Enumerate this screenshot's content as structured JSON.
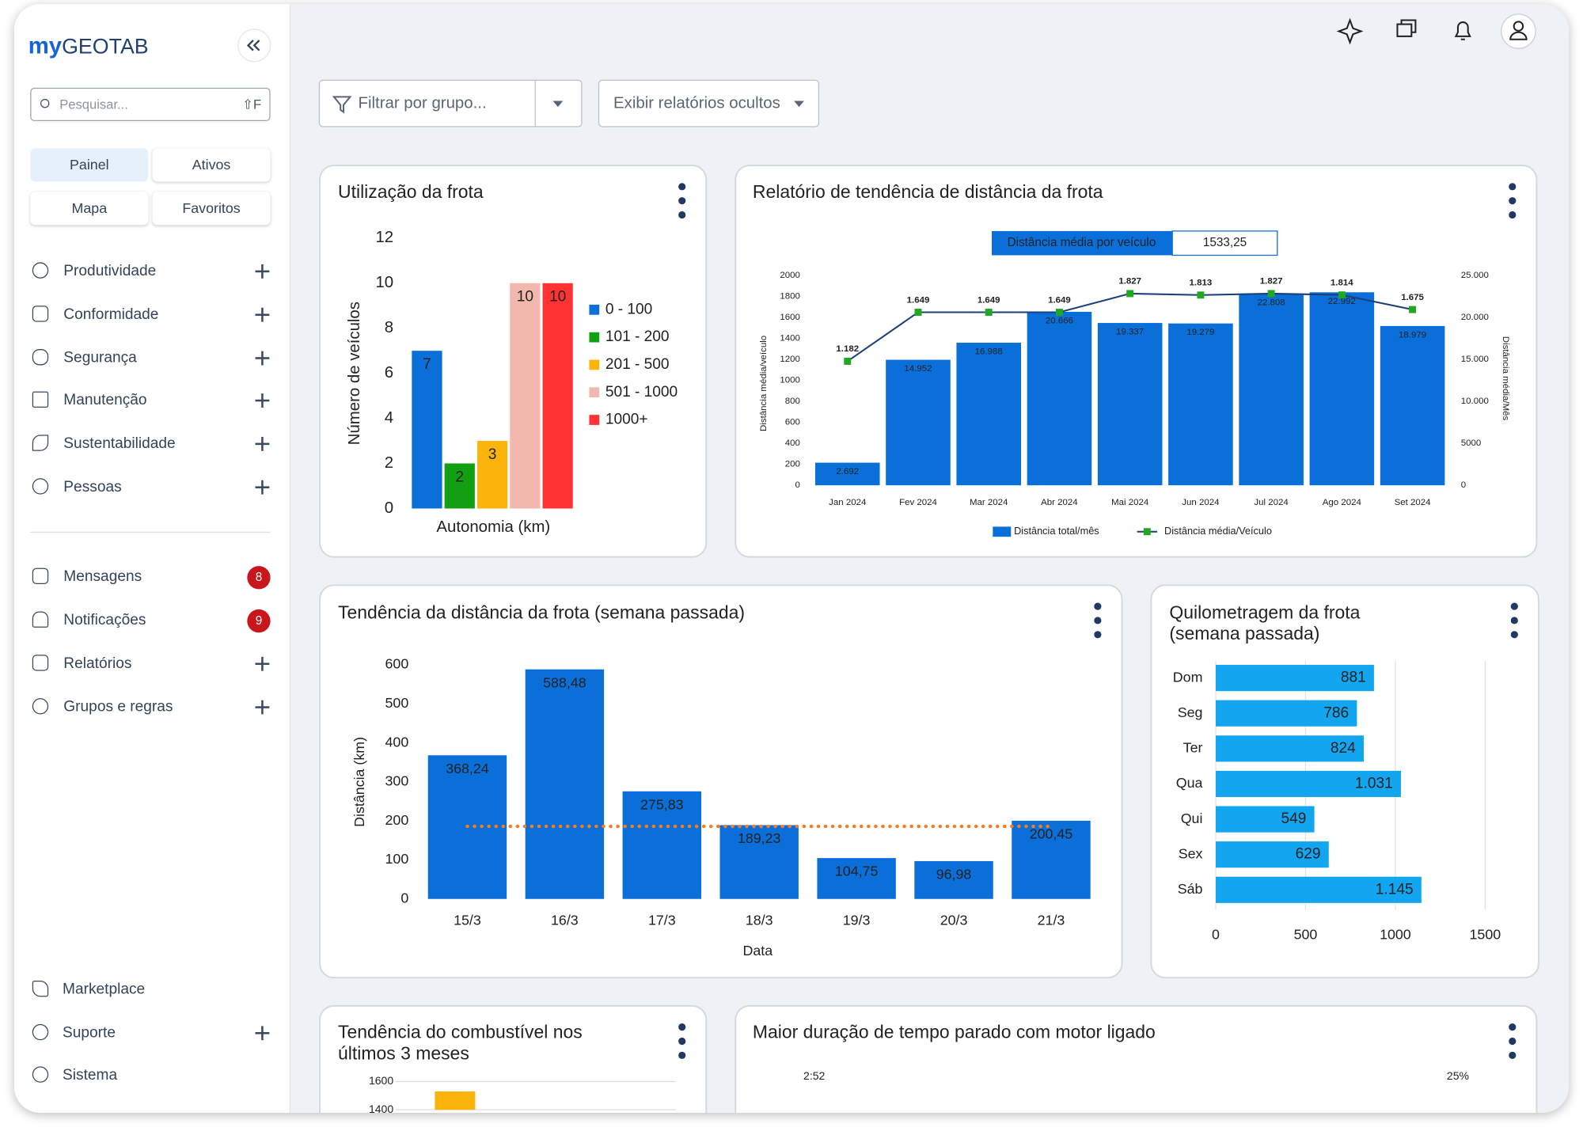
{
  "brand": {
    "prefix": "my",
    "name": "GEOTAB"
  },
  "search": {
    "placeholder": "Pesquisar...",
    "shortcut": "⇧F"
  },
  "quick_links": [
    "Painel",
    "Ativos",
    "Mapa",
    "Favoritos"
  ],
  "menu": [
    "Produtividade",
    "Conformidade",
    "Segurança",
    "Manutenção",
    "Sustentabilidade",
    "Pessoas"
  ],
  "menu2": [
    {
      "label": "Mensagens",
      "badge": 8
    },
    {
      "label": "Notificações",
      "badge": 9
    },
    {
      "label": "Relatórios"
    },
    {
      "label": "Grupos e regras"
    }
  ],
  "footer_menu": [
    "Marketplace",
    "Suporte",
    "Sistema"
  ],
  "toolbar": {
    "group_filter": "Filtrar por grupo...",
    "hidden_reports": "Exibir relatórios ocultos"
  },
  "chart_data": [
    {
      "type": "bar",
      "title": "Utilização da frota",
      "categories": [
        "0 - 100",
        "101 - 200",
        "201 - 500",
        "501 - 1000",
        "1000+"
      ],
      "values": [
        7,
        2,
        3,
        10,
        10
      ],
      "colors": [
        "#0a6fd8",
        "#12a012",
        "#fbb40c",
        "#f2b8ae",
        "#ff3333"
      ],
      "ylim": [
        0,
        12
      ],
      "yticks": [
        0,
        2,
        4,
        6,
        8,
        10,
        12
      ],
      "y_label": "Número de veículos",
      "x_label": "Autonomia (km)",
      "legend": "right"
    },
    {
      "type": "bar_line",
      "title": "Relatório de tendência de distância da frota",
      "kpi": {
        "label": "Distância média por veículo",
        "value": 1533.25,
        "value_label": "1533,25"
      },
      "categories": [
        "Jan 2024",
        "Fev 2024",
        "Mar 2024",
        "Abr 2024",
        "Mai 2024",
        "Jun 2024",
        "Jul 2024",
        "Ago 2024",
        "Set 2024"
      ],
      "series": [
        {
          "name": "Distância total/mês",
          "kind": "bar",
          "axis": "y2",
          "color": "#0a6fd8",
          "values": [
            2692,
            14952,
            16988,
            20666,
            19337,
            19279,
            22808,
            22992,
            18979
          ],
          "value_labels": [
            "2.692",
            "14.952",
            "16.988",
            "20.666",
            "19.337",
            "19.279",
            "22.808",
            "22.992",
            "18.979"
          ]
        },
        {
          "name": "Distância média/Veículo",
          "kind": "line",
          "color": "#1c3f7c",
          "marker_color": "#22a722",
          "values": [
            1182,
            1649,
            1649,
            1649,
            1827,
            1813,
            1827,
            1814,
            1675
          ],
          "value_labels": [
            "1.182",
            "1.649",
            "1.649",
            "1.649",
            "1.827",
            "1.813",
            "1.827",
            "1.814",
            "1.675"
          ]
        }
      ],
      "ylim": [
        0,
        2000
      ],
      "yticks": [
        0,
        200,
        400,
        600,
        800,
        1000,
        1200,
        1400,
        1600,
        1800,
        2000
      ],
      "y2lim": [
        0,
        25000
      ],
      "y2ticks": [
        0,
        5000,
        {
          "value": 10000,
          "label": "10.000"
        },
        {
          "value": 15000,
          "label": "15.000"
        },
        {
          "value": 20000,
          "label": "20.000"
        },
        {
          "value": 25000,
          "label": "25.000"
        }
      ],
      "y_label": "Distância média/veículo",
      "y2_label": "Distância média/Mês",
      "legend": "bottom"
    },
    {
      "type": "bar",
      "title": "Tendência da distância da frota (semana passada)",
      "categories": [
        "15/3",
        "16/3",
        "17/3",
        "18/3",
        "19/3",
        "20/3",
        "21/3"
      ],
      "values": [
        368.24,
        588.48,
        275.83,
        189.23,
        104.75,
        96.98,
        200.45
      ],
      "value_labels": [
        "368,24",
        "588,48",
        "275,83",
        "189,23",
        "104,75",
        "96,98",
        "200,45"
      ],
      "color": "#0a6fd8",
      "reference_line": 186,
      "reference_color": "#f57c1f",
      "ylim": [
        0,
        600
      ],
      "yticks": [
        0,
        100,
        200,
        300,
        400,
        500,
        600
      ],
      "y_label": "Distância (km)",
      "x_label": "Data"
    },
    {
      "type": "hbar",
      "title": "Quilometragem da frota (semana passada)",
      "categories": [
        "Dom",
        "Seg",
        "Ter",
        "Qua",
        "Qui",
        "Sex",
        "Sáb"
      ],
      "values": [
        881,
        786,
        824,
        1031,
        549,
        629,
        1145
      ],
      "value_labels": [
        "881",
        "786",
        "824",
        "1.031",
        "549",
        "629",
        "1.145"
      ],
      "color": "#12a5f0",
      "xlim": [
        0,
        1500
      ],
      "xticks": [
        0,
        500,
        1000,
        1500
      ],
      "grid": true
    },
    {
      "type": "bar",
      "title": "Tendência do combustível nos últimos 3 meses",
      "categories": [
        null
      ],
      "values": [
        1530
      ],
      "color": "#fbb40c",
      "ylim": [
        1400,
        1600
      ],
      "yticks": [
        1400,
        1600
      ],
      "grid": true
    }
  ],
  "idle_card": {
    "title": "Maior duração de tempo parado com motor ligado",
    "left_label": "2:52",
    "right_label": "25%"
  }
}
